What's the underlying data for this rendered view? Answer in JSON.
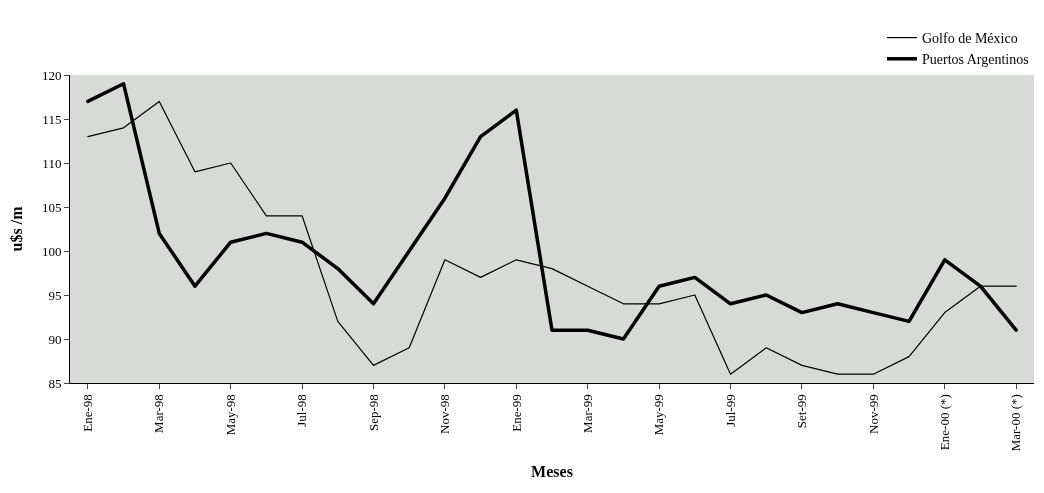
{
  "chart_data": {
    "type": "line",
    "xlabel": "Meses",
    "ylabel": "u$s /m",
    "categories": [
      "Ene-98",
      null,
      "Mar-98",
      null,
      "May-98",
      null,
      "Jul-98",
      null,
      "Sep-98",
      null,
      "Nov-98",
      null,
      "Ene-99",
      null,
      "Mar-99",
      null,
      "May-99",
      null,
      "Jul-99",
      null,
      "Set-99",
      null,
      "Nov-99",
      null,
      "Ene-00 (*)",
      null,
      "Mar-00 (*)"
    ],
    "series": [
      {
        "name": "Golfo de México",
        "color": "#000000",
        "values": [
          113,
          114,
          117,
          109,
          110,
          104,
          104,
          92,
          87,
          89,
          99,
          97,
          99,
          98,
          96,
          94,
          94,
          95,
          86,
          89,
          87,
          86,
          86,
          88,
          93,
          96,
          96
        ]
      },
      {
        "name": "Puertos Argentinos",
        "color": "#000000",
        "values": [
          117,
          119,
          102,
          96,
          101,
          102,
          101,
          98,
          94,
          100,
          106,
          113,
          116,
          91,
          91,
          90,
          96,
          97,
          94,
          95,
          93,
          94,
          93,
          92,
          99,
          96,
          91
        ]
      }
    ],
    "ylim": [
      85,
      120
    ],
    "yticks": [
      85,
      90,
      95,
      100,
      105,
      110,
      115,
      120
    ],
    "grid": false,
    "legend": "top right",
    "marker": "none",
    "line_style": "solid"
  }
}
